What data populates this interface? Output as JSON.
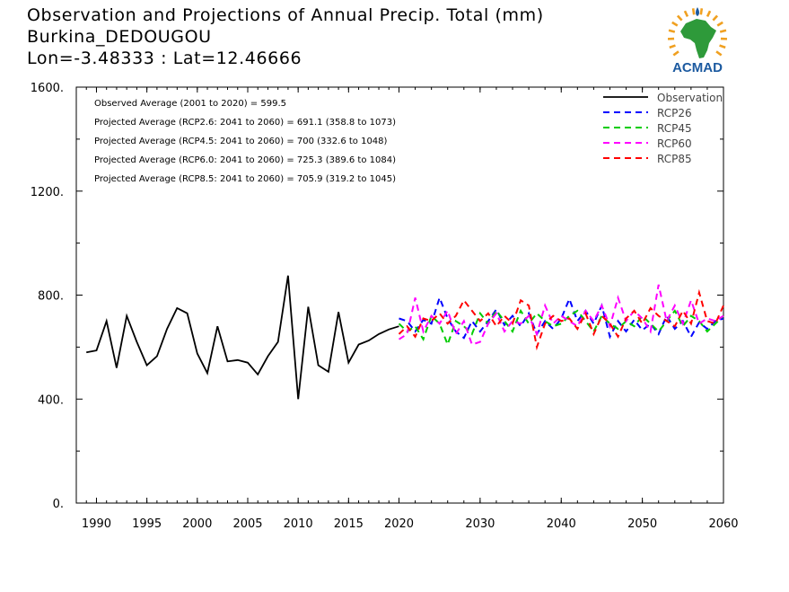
{
  "header": {
    "title_line1": "Observation and Projections of Annual Precip. Total (mm)",
    "title_line2": "Burkina_DEDOUGOU",
    "title_line3": "Lon=-3.48333 : Lat=12.46666",
    "logo_text": "ACMAD"
  },
  "colors": {
    "observation": "#000000",
    "rcp26": "#0000ff",
    "rcp45": "#00cc00",
    "rcp60": "#ff00ff",
    "rcp85": "#ff0000",
    "logo_text": "#1c5aa0",
    "logo_africa": "#2e9a3a",
    "logo_rays": "#f0a020"
  },
  "chart_data": {
    "type": "line",
    "title": "Observation and Projections of Annual Precip. Total (mm)",
    "x_ticks": [
      1990,
      1995,
      2000,
      2005,
      2010,
      2015,
      2020,
      2030,
      2040,
      2050,
      2060
    ],
    "x_tick_labels": [
      "1990",
      "1995",
      "2000",
      "2005",
      "2010",
      "2015",
      "2020",
      "2030",
      "2040",
      "2050",
      "2060"
    ],
    "y_ticks": [
      0,
      400,
      800,
      1200,
      1600
    ],
    "y_tick_labels": [
      "0.",
      "400.",
      "800.",
      "1200.",
      "1600."
    ],
    "ylim": [
      0,
      1600
    ],
    "grid": false,
    "legend_position": "top-right",
    "stats": [
      "Observed Average (2001 to 2020) = 599.5",
      "Projected Average (RCP2.6: 2041 to 2060) = 691.1 (358.8 to 1073)",
      "Projected Average (RCP4.5: 2041 to 2060) = 700 (332.6 to 1048)",
      "Projected Average (RCP6.0: 2041 to 2060) = 725.3 (389.6 to 1084)",
      "Projected Average (RCP8.5: 2041 to 2060) = 705.9 (319.2 to 1045)"
    ],
    "series": [
      {
        "name": "Observation",
        "style": "solid",
        "color_key": "observation",
        "x": [
          1989,
          1990,
          1991,
          1992,
          1993,
          1994,
          1995,
          1996,
          1997,
          1998,
          1999,
          2000,
          2001,
          2002,
          2003,
          2004,
          2005,
          2006,
          2007,
          2008,
          2009,
          2010,
          2011,
          2012,
          2013,
          2014,
          2015,
          2016,
          2017,
          2018,
          2019,
          2020
        ],
        "values": [
          580,
          587,
          700,
          520,
          720,
          620,
          530,
          565,
          670,
          750,
          730,
          575,
          500,
          680,
          545,
          550,
          540,
          495,
          565,
          620,
          875,
          400,
          755,
          530,
          505,
          735,
          540,
          610,
          625,
          650,
          668,
          680
        ]
      },
      {
        "name": "RCP26",
        "style": "dashed",
        "color_key": "rcp26",
        "x": [
          2020,
          2021,
          2022,
          2023,
          2024,
          2025,
          2026,
          2027,
          2028,
          2029,
          2030,
          2031,
          2032,
          2033,
          2034,
          2035,
          2036,
          2037,
          2038,
          2039,
          2040,
          2041,
          2042,
          2043,
          2044,
          2045,
          2046,
          2047,
          2048,
          2049,
          2050,
          2051,
          2052,
          2053,
          2054,
          2055,
          2056,
          2057,
          2058,
          2059,
          2060
        ],
        "values": [
          710,
          700,
          660,
          705,
          690,
          790,
          710,
          660,
          635,
          700,
          660,
          700,
          745,
          685,
          720,
          680,
          730,
          650,
          700,
          670,
          710,
          785,
          700,
          740,
          690,
          760,
          640,
          700,
          660,
          705,
          665,
          690,
          650,
          720,
          670,
          700,
          640,
          695,
          670,
          700,
          710
        ]
      },
      {
        "name": "RCP45",
        "style": "dashed",
        "color_key": "rcp45",
        "x": [
          2020,
          2021,
          2022,
          2023,
          2024,
          2025,
          2026,
          2027,
          2028,
          2029,
          2030,
          2031,
          2032,
          2033,
          2034,
          2035,
          2036,
          2037,
          2038,
          2039,
          2040,
          2041,
          2042,
          2043,
          2044,
          2045,
          2046,
          2047,
          2048,
          2049,
          2050,
          2051,
          2052,
          2053,
          2054,
          2055,
          2056,
          2057,
          2058,
          2059,
          2060
        ],
        "values": [
          690,
          660,
          680,
          630,
          720,
          690,
          610,
          700,
          680,
          650,
          730,
          690,
          740,
          700,
          660,
          740,
          690,
          730,
          700,
          680,
          690,
          720,
          740,
          700,
          660,
          720,
          690,
          670,
          700,
          680,
          720,
          690,
          660,
          700,
          740,
          680,
          720,
          700,
          660,
          690,
          720
        ]
      },
      {
        "name": "RCP60",
        "style": "dashed",
        "color_key": "rcp60",
        "x": [
          2020,
          2021,
          2022,
          2023,
          2024,
          2025,
          2026,
          2027,
          2028,
          2029,
          2030,
          2031,
          2032,
          2033,
          2034,
          2035,
          2036,
          2037,
          2038,
          2039,
          2040,
          2041,
          2042,
          2043,
          2044,
          2045,
          2046,
          2047,
          2048,
          2049,
          2050,
          2051,
          2052,
          2053,
          2054,
          2055,
          2056,
          2057,
          2058,
          2059,
          2060
        ],
        "values": [
          630,
          650,
          790,
          660,
          720,
          690,
          740,
          650,
          700,
          610,
          620,
          690,
          730,
          660,
          700,
          690,
          720,
          650,
          760,
          690,
          720,
          700,
          680,
          740,
          700,
          760,
          680,
          790,
          700,
          740,
          710,
          660,
          840,
          700,
          760,
          690,
          780,
          690,
          710,
          700,
          720
        ]
      },
      {
        "name": "RCP85",
        "style": "dashed",
        "color_key": "rcp85",
        "x": [
          2020,
          2021,
          2022,
          2023,
          2024,
          2025,
          2026,
          2027,
          2028,
          2029,
          2030,
          2031,
          2032,
          2033,
          2034,
          2035,
          2036,
          2037,
          2038,
          2039,
          2040,
          2041,
          2042,
          2043,
          2044,
          2045,
          2046,
          2047,
          2048,
          2049,
          2050,
          2051,
          2052,
          2053,
          2054,
          2055,
          2056,
          2057,
          2058,
          2059,
          2060
        ],
        "values": [
          650,
          680,
          640,
          710,
          700,
          730,
          690,
          720,
          780,
          740,
          700,
          730,
          680,
          720,
          690,
          780,
          760,
          600,
          690,
          720,
          700,
          710,
          670,
          730,
          650,
          720,
          690,
          640,
          710,
          740,
          690,
          750,
          720,
          700,
          680,
          740,
          690,
          810,
          700,
          690,
          760
        ]
      }
    ]
  }
}
